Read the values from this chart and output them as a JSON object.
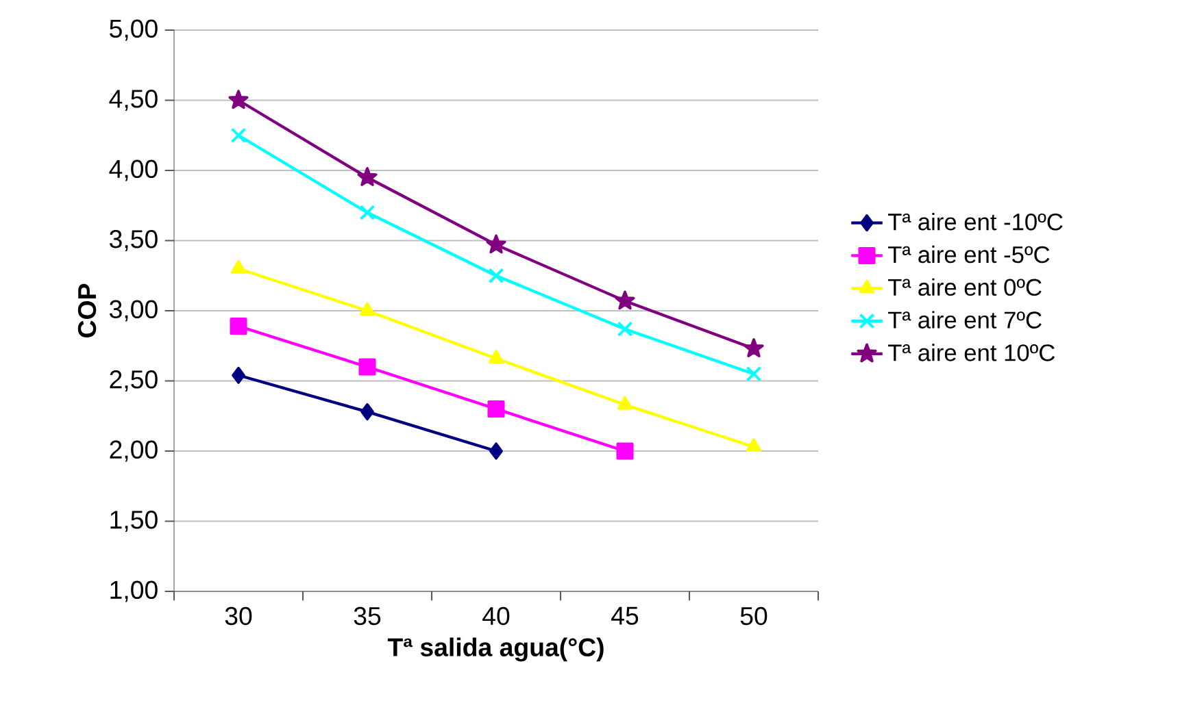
{
  "chart_data": {
    "type": "line",
    "xlabel": "Tª salida agua(°C)",
    "ylabel": "COP",
    "categories": [
      "30",
      "35",
      "40",
      "45",
      "50"
    ],
    "series": [
      {
        "name": "Tª aire ent -10ºC",
        "color": "#000080",
        "marker": "diamond",
        "values": [
          2.54,
          2.28,
          2.0,
          null,
          null
        ]
      },
      {
        "name": "Tª aire ent -5ºC",
        "color": "#ff00ff",
        "marker": "square",
        "values": [
          2.89,
          2.6,
          2.3,
          2.0,
          null
        ]
      },
      {
        "name": "Tª aire ent 0ºC",
        "color": "#ffff00",
        "marker": "triangle",
        "values": [
          3.3,
          3.0,
          2.66,
          2.33,
          2.03
        ]
      },
      {
        "name": "Tª aire ent 7ºC",
        "color": "#00ffff",
        "marker": "cross",
        "values": [
          4.25,
          3.7,
          3.25,
          2.87,
          2.55
        ]
      },
      {
        "name": "Tª aire ent 10ºC",
        "color": "#800080",
        "marker": "star",
        "values": [
          4.5,
          3.95,
          3.47,
          3.07,
          2.73
        ]
      }
    ],
    "ylim": [
      1,
      5
    ],
    "yticks": [
      {
        "value": 1,
        "label": "1,00"
      },
      {
        "value": 1.5,
        "label": "1,50"
      },
      {
        "value": 2,
        "label": "2,00"
      },
      {
        "value": 2.5,
        "label": "2,50"
      },
      {
        "value": 3,
        "label": "3,00"
      },
      {
        "value": 3.5,
        "label": "3,50"
      },
      {
        "value": 4,
        "label": "4,00"
      },
      {
        "value": 4.5,
        "label": "4,50"
      },
      {
        "value": 5,
        "label": "5,00"
      }
    ],
    "grid": "y",
    "legend": "right",
    "line_style": "solid"
  }
}
